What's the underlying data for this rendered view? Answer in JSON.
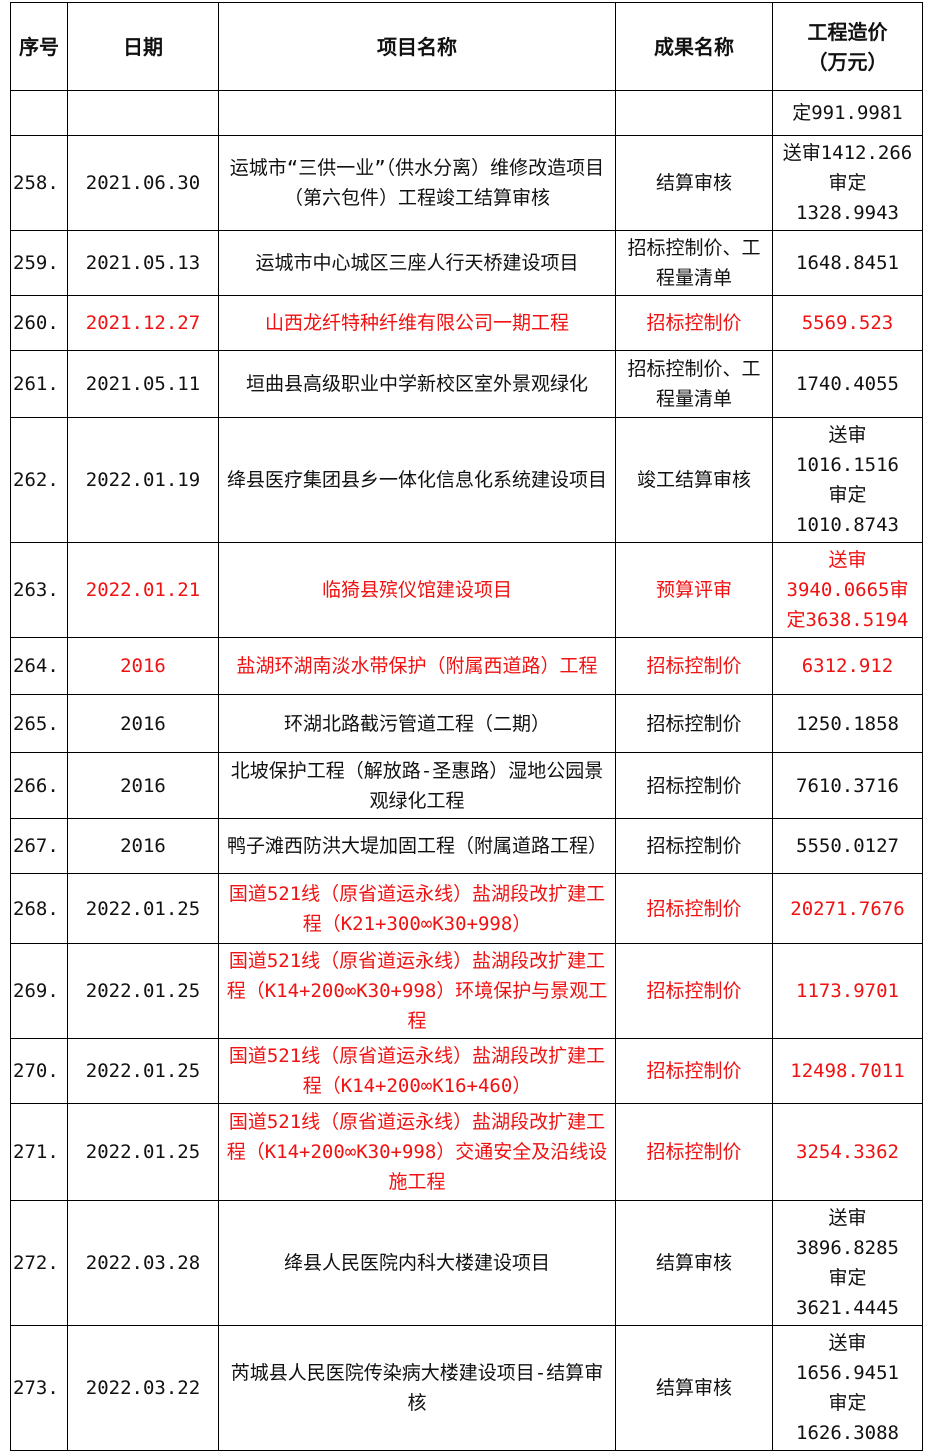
{
  "table": {
    "unit_note": "工程造价（万元）",
    "colors": {
      "highlight_red": "#f01212",
      "text_black": "#111111",
      "border_black": "#000000"
    },
    "headers": [
      "序号",
      "日期",
      "项目名称",
      "成果名称",
      [
        "工程造价",
        "（万元）"
      ]
    ],
    "rows": [
      {
        "no": "",
        "date": "",
        "project": "",
        "result": "",
        "cost": [
          "定991.9981"
        ],
        "red": {}
      },
      {
        "no": "258.",
        "date": "2021.06.30",
        "project": "运城市“三供一业”（供水分离）维修改造项目（第六包件）工程竣工结算审核",
        "result": "结算审核",
        "cost": [
          "送审1412.266",
          "审定1328.9943"
        ],
        "red": {}
      },
      {
        "no": "259.",
        "date": "2021.05.13",
        "project": "运城市中心城区三座人行天桥建设项目",
        "result": "招标控制价、工程量清单",
        "cost": [
          "1648.8451"
        ],
        "red": {}
      },
      {
        "no": "260.",
        "date": "2021.12.27",
        "project": "山西龙纤特种纤维有限公司一期工程",
        "result": "招标控制价",
        "cost": [
          "5569.523"
        ],
        "red": {
          "date": true,
          "project": true,
          "result": true,
          "cost": true
        }
      },
      {
        "no": "261.",
        "date": "2021.05.11",
        "project": "垣曲县高级职业中学新校区室外景观绿化",
        "result": "招标控制价、工程量清单",
        "cost": [
          "1740.4055"
        ],
        "red": {}
      },
      {
        "no": "262.",
        "date": "2022.01.19",
        "project": "绛县医疗集团县乡一体化信息化系统建设项目",
        "result": "竣工结算审核",
        "cost": [
          "送审1016.1516",
          "审定1010.8743"
        ],
        "red": {}
      },
      {
        "no": "263.",
        "date": "2022.01.21",
        "project": "临猗县殡仪馆建设项目",
        "result": "预算评审",
        "cost": [
          "送审3940.0665审",
          "定3638.5194"
        ],
        "red": {
          "date": true,
          "project": true,
          "result": true,
          "cost": true
        }
      },
      {
        "no": "264.",
        "date": "2016",
        "project": "盐湖环湖南淡水带保护（附属西道路）工程",
        "result": "招标控制价",
        "cost": [
          "6312.912"
        ],
        "red": {
          "date": true,
          "project": true,
          "result": true,
          "cost": true
        }
      },
      {
        "no": "265.",
        "date": "2016",
        "project": "环湖北路截污管道工程（二期）",
        "result": "招标控制价",
        "cost": [
          "1250.1858"
        ],
        "red": {}
      },
      {
        "no": "266.",
        "date": "2016",
        "project": "北坡保护工程（解放路-圣惠路）湿地公园景观绿化工程",
        "result": "招标控制价",
        "cost": [
          "7610.3716"
        ],
        "red": {}
      },
      {
        "no": "267.",
        "date": "2016",
        "project": "鸭子滩西防洪大堤加固工程（附属道路工程）",
        "result": "招标控制价",
        "cost": [
          "5550.0127"
        ],
        "red": {}
      },
      {
        "no": "268.",
        "date": "2022.01.25",
        "project": "国道521线（原省道运永线）盐湖段改扩建工程（K21+300∞K30+998）",
        "result": "招标控制价",
        "cost": [
          "20271.7676"
        ],
        "red": {
          "project": true,
          "result": true,
          "cost": true
        }
      },
      {
        "no": "269.",
        "date": "2022.01.25",
        "project": "国道521线（原省道运永线）盐湖段改扩建工程（K14+200∞K30+998）环境保护与景观工程",
        "result": "招标控制价",
        "cost": [
          "1173.9701"
        ],
        "red": {
          "project": true,
          "result": true,
          "cost": true
        }
      },
      {
        "no": "270.",
        "date": "2022.01.25",
        "project": "国道521线（原省道运永线）盐湖段改扩建工程（K14+200∞K16+460）",
        "result": "招标控制价",
        "cost": [
          "12498.7011"
        ],
        "red": {
          "project": true,
          "result": true,
          "cost": true
        }
      },
      {
        "no": "271.",
        "date": "2022.01.25",
        "project": "国道521线（原省道运永线）盐湖段改扩建工程（K14+200∞K30+998）交通安全及沿线设施工程",
        "result": "招标控制价",
        "cost": [
          "3254.3362"
        ],
        "red": {
          "project": true,
          "result": true,
          "cost": true
        }
      },
      {
        "no": "272.",
        "date": "2022.03.28",
        "project": "绛县人民医院内科大楼建设项目",
        "result": "结算审核",
        "cost": [
          "送审3896.8285",
          "审定3621.4445"
        ],
        "red": {}
      },
      {
        "no": "273.",
        "date": "2022.03.22",
        "project": "芮城县人民医院传染病大楼建设项目-结算审核",
        "result": "结算审核",
        "cost": [
          "送审1656.9451",
          "审定1626.3088"
        ],
        "red": {}
      }
    ]
  }
}
